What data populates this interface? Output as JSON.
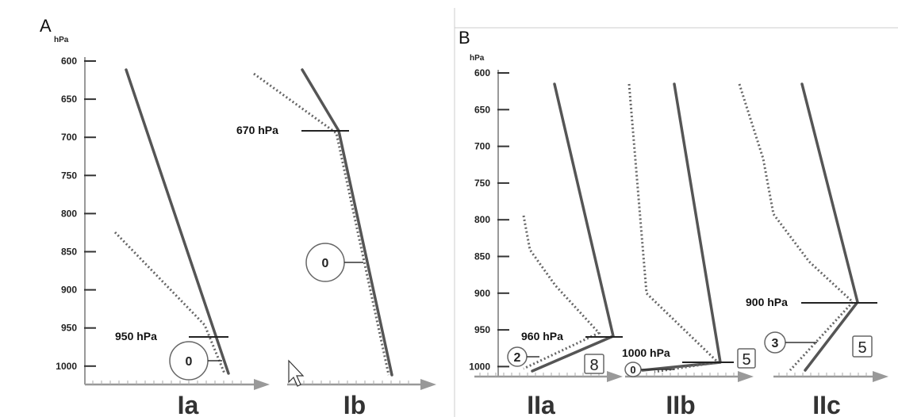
{
  "panel_a": {
    "letter": "A",
    "unit": "hPa",
    "ticks": [
      "600",
      "650",
      "700",
      "750",
      "800",
      "850",
      "900",
      "950",
      "1000"
    ],
    "diagrams": [
      {
        "name": "Ia",
        "pressure_label": "950 hPa",
        "circle_value": "0"
      },
      {
        "name": "Ib",
        "pressure_label": "670 hPa",
        "circle_value": "0"
      }
    ]
  },
  "panel_b": {
    "letter": "B",
    "unit": "hPa",
    "ticks": [
      "600",
      "650",
      "700",
      "750",
      "800",
      "850",
      "900",
      "950",
      "1000"
    ],
    "diagrams": [
      {
        "name": "IIa",
        "pressure_label": "960 hPa",
        "circle_value": "2",
        "box_value": "8"
      },
      {
        "name": "IIb",
        "pressure_label": "1000 hPa",
        "circle_value": "0",
        "box_value": "5"
      },
      {
        "name": "IIc",
        "pressure_label": "900 hPa",
        "circle_value": "3",
        "box_value": "5"
      }
    ]
  },
  "colors": {
    "profile": "#555555",
    "axis": "#999999",
    "text": "#222222"
  }
}
